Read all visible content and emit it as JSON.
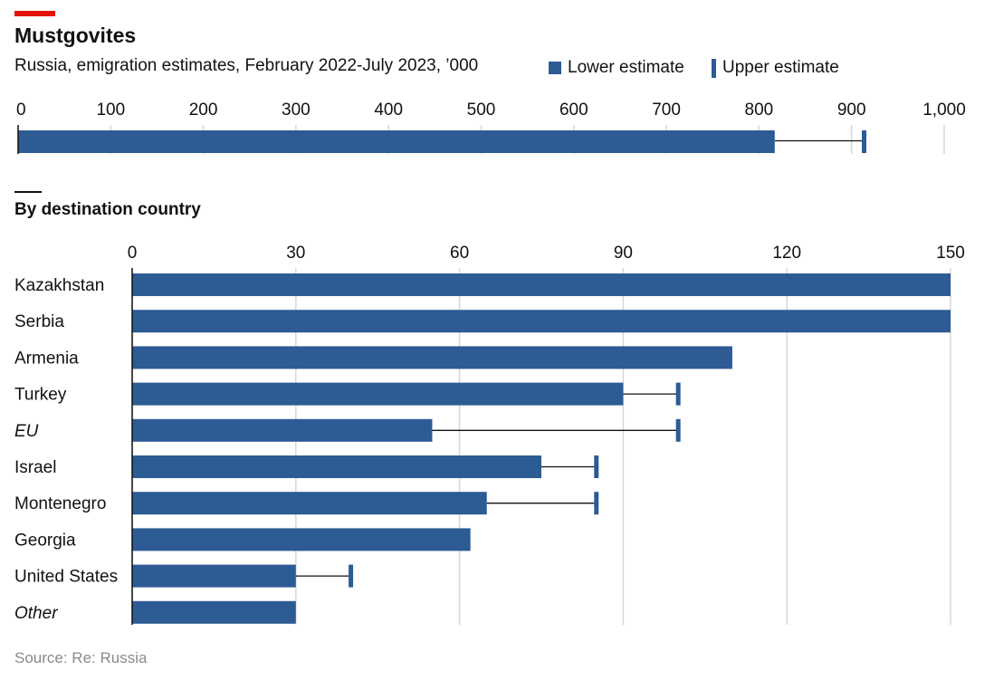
{
  "header": {
    "title": "Mustgovites",
    "subtitle": "Russia, emigration estimates, February 2022-July 2023, ’000"
  },
  "legend": {
    "lower": "Lower estimate",
    "upper": "Upper estimate"
  },
  "section": {
    "title": "By destination country"
  },
  "source": "Source: Re: Russia",
  "colors": {
    "bar": "#2d5b94",
    "accent": "#e3120b",
    "grid": "#d7d7d7"
  },
  "chart_data": [
    {
      "type": "bar",
      "orientation": "horizontal",
      "title": "Russia, emigration estimates, February 2022-July 2023, ’000",
      "xlim": [
        0,
        1000
      ],
      "ticks": [
        0,
        100,
        200,
        300,
        400,
        500,
        600,
        700,
        800,
        900,
        1000
      ],
      "tick_labels": [
        "0",
        "100",
        "200",
        "300",
        "400",
        "500",
        "600",
        "700",
        "800",
        "900",
        "1,000"
      ],
      "categories": [
        ""
      ],
      "series": [
        {
          "name": "Lower estimate",
          "values": [
            817
          ]
        },
        {
          "name": "Upper estimate",
          "values": [
            913
          ]
        }
      ]
    },
    {
      "type": "bar",
      "orientation": "horizontal",
      "title": "By destination country",
      "xlim": [
        0,
        150
      ],
      "ticks": [
        0,
        30,
        60,
        90,
        120,
        150
      ],
      "tick_labels": [
        "0",
        "30",
        "60",
        "90",
        "120",
        "150"
      ],
      "categories": [
        "Kazakhstan",
        "Serbia",
        "Armenia",
        "Turkey",
        "EU",
        "Israel",
        "Montenegro",
        "Georgia",
        "United States",
        "Other"
      ],
      "italic_categories": [
        "EU",
        "Other"
      ],
      "series": [
        {
          "name": "Lower estimate",
          "values": [
            150,
            150,
            110,
            90,
            55,
            75,
            65,
            62,
            30,
            30
          ]
        },
        {
          "name": "Upper estimate",
          "values": [
            null,
            null,
            null,
            100,
            100,
            85,
            85,
            null,
            40,
            null
          ]
        }
      ]
    }
  ]
}
